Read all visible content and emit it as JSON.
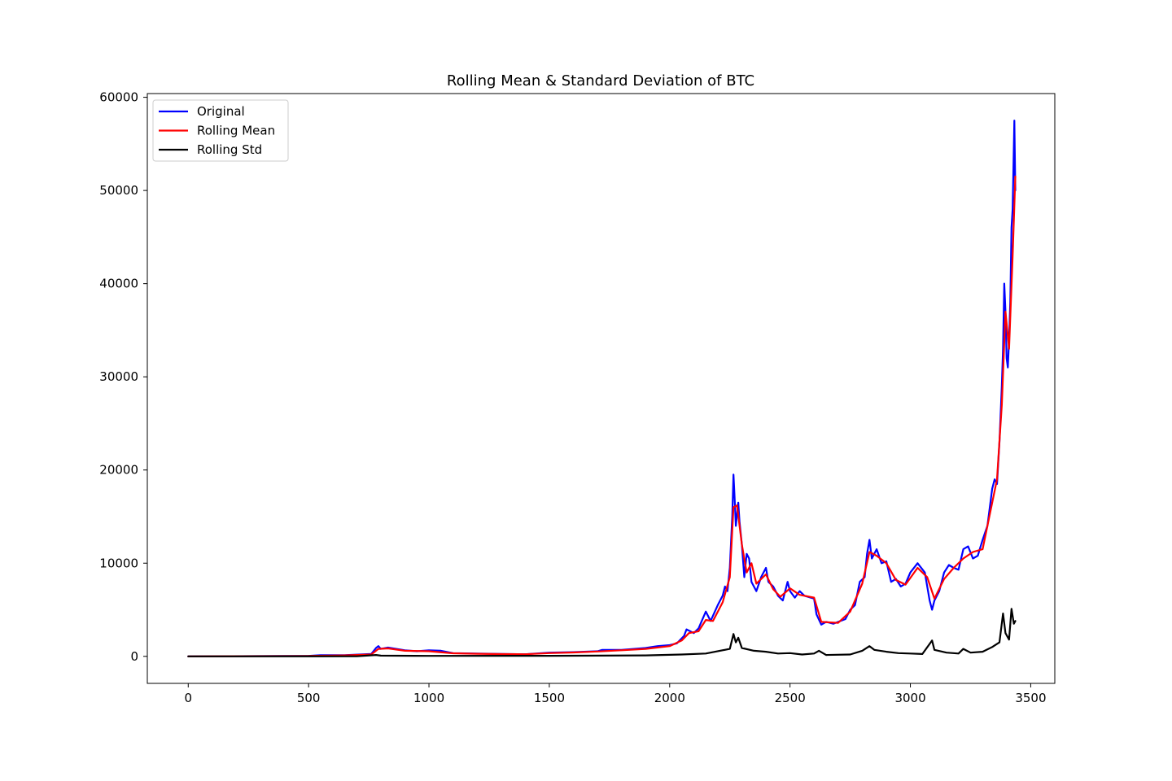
{
  "chart_data": {
    "type": "line",
    "title": "Rolling Mean & Standard Deviation of BTC",
    "xlabel": "",
    "ylabel": "",
    "xlim": [
      -170,
      3600
    ],
    "ylim": [
      -2900,
      60400
    ],
    "x_ticks": [
      0,
      500,
      1000,
      1500,
      2000,
      2500,
      3000,
      3500
    ],
    "y_ticks": [
      0,
      10000,
      20000,
      30000,
      40000,
      50000,
      60000
    ],
    "grid": false,
    "legend_position": "top-left",
    "series": [
      {
        "name": "Original",
        "color": "#0000ff",
        "points": [
          [
            0,
            0
          ],
          [
            500,
            50
          ],
          [
            550,
            120
          ],
          [
            650,
            130
          ],
          [
            760,
            250
          ],
          [
            780,
            900
          ],
          [
            790,
            1100
          ],
          [
            800,
            800
          ],
          [
            830,
            950
          ],
          [
            900,
            650
          ],
          [
            950,
            550
          ],
          [
            1000,
            650
          ],
          [
            1050,
            600
          ],
          [
            1100,
            350
          ],
          [
            1200,
            300
          ],
          [
            1300,
            250
          ],
          [
            1400,
            230
          ],
          [
            1500,
            400
          ],
          [
            1600,
            450
          ],
          [
            1700,
            550
          ],
          [
            1720,
            700
          ],
          [
            1800,
            700
          ],
          [
            1900,
            900
          ],
          [
            1950,
            1100
          ],
          [
            2000,
            1200
          ],
          [
            2030,
            1400
          ],
          [
            2060,
            2200
          ],
          [
            2070,
            2900
          ],
          [
            2100,
            2500
          ],
          [
            2120,
            3000
          ],
          [
            2140,
            4200
          ],
          [
            2150,
            4800
          ],
          [
            2170,
            3800
          ],
          [
            2200,
            5500
          ],
          [
            2220,
            6500
          ],
          [
            2230,
            7500
          ],
          [
            2240,
            7000
          ],
          [
            2250,
            9500
          ],
          [
            2260,
            15000
          ],
          [
            2265,
            19500
          ],
          [
            2270,
            17000
          ],
          [
            2275,
            14000
          ],
          [
            2285,
            16500
          ],
          [
            2290,
            14500
          ],
          [
            2300,
            12000
          ],
          [
            2310,
            8500
          ],
          [
            2320,
            11000
          ],
          [
            2330,
            10500
          ],
          [
            2340,
            8000
          ],
          [
            2360,
            7000
          ],
          [
            2380,
            8500
          ],
          [
            2400,
            9500
          ],
          [
            2410,
            8000
          ],
          [
            2430,
            7500
          ],
          [
            2450,
            6500
          ],
          [
            2470,
            6000
          ],
          [
            2490,
            8000
          ],
          [
            2500,
            7000
          ],
          [
            2520,
            6300
          ],
          [
            2540,
            7000
          ],
          [
            2560,
            6500
          ],
          [
            2600,
            6200
          ],
          [
            2610,
            4500
          ],
          [
            2630,
            3400
          ],
          [
            2650,
            3700
          ],
          [
            2680,
            3500
          ],
          [
            2700,
            3700
          ],
          [
            2730,
            4000
          ],
          [
            2750,
            5000
          ],
          [
            2770,
            5500
          ],
          [
            2790,
            8000
          ],
          [
            2810,
            8500
          ],
          [
            2820,
            11000
          ],
          [
            2830,
            12500
          ],
          [
            2840,
            10500
          ],
          [
            2860,
            11500
          ],
          [
            2880,
            10000
          ],
          [
            2900,
            10200
          ],
          [
            2920,
            8000
          ],
          [
            2940,
            8300
          ],
          [
            2960,
            7500
          ],
          [
            2980,
            7800
          ],
          [
            3000,
            9000
          ],
          [
            3030,
            10000
          ],
          [
            3060,
            9000
          ],
          [
            3080,
            6000
          ],
          [
            3090,
            5000
          ],
          [
            3100,
            6000
          ],
          [
            3120,
            7000
          ],
          [
            3140,
            9000
          ],
          [
            3160,
            9800
          ],
          [
            3180,
            9500
          ],
          [
            3200,
            9300
          ],
          [
            3220,
            11500
          ],
          [
            3240,
            11800
          ],
          [
            3260,
            10500
          ],
          [
            3280,
            10800
          ],
          [
            3300,
            12500
          ],
          [
            3320,
            14000
          ],
          [
            3340,
            18000
          ],
          [
            3350,
            19000
          ],
          [
            3360,
            18500
          ],
          [
            3370,
            23000
          ],
          [
            3380,
            29000
          ],
          [
            3385,
            33000
          ],
          [
            3390,
            40000
          ],
          [
            3395,
            37000
          ],
          [
            3400,
            32000
          ],
          [
            3405,
            31000
          ],
          [
            3410,
            34000
          ],
          [
            3415,
            38000
          ],
          [
            3420,
            46000
          ],
          [
            3425,
            48000
          ],
          [
            3428,
            52000
          ],
          [
            3432,
            57500
          ],
          [
            3436,
            50000
          ]
        ]
      },
      {
        "name": "Rolling Mean",
        "color": "#ff0000",
        "points": [
          [
            0,
            0
          ],
          [
            500,
            40
          ],
          [
            650,
            100
          ],
          [
            760,
            200
          ],
          [
            790,
            800
          ],
          [
            830,
            850
          ],
          [
            900,
            600
          ],
          [
            1000,
            550
          ],
          [
            1100,
            330
          ],
          [
            1200,
            280
          ],
          [
            1300,
            240
          ],
          [
            1400,
            230
          ],
          [
            1500,
            350
          ],
          [
            1600,
            420
          ],
          [
            1700,
            520
          ],
          [
            1800,
            650
          ],
          [
            1900,
            800
          ],
          [
            2000,
            1100
          ],
          [
            2050,
            1700
          ],
          [
            2080,
            2500
          ],
          [
            2120,
            2700
          ],
          [
            2150,
            3900
          ],
          [
            2180,
            3800
          ],
          [
            2220,
            5800
          ],
          [
            2250,
            8500
          ],
          [
            2265,
            16000
          ],
          [
            2280,
            16200
          ],
          [
            2300,
            12000
          ],
          [
            2320,
            9000
          ],
          [
            2340,
            10000
          ],
          [
            2360,
            7800
          ],
          [
            2400,
            8800
          ],
          [
            2430,
            7200
          ],
          [
            2460,
            6400
          ],
          [
            2500,
            7300
          ],
          [
            2540,
            6600
          ],
          [
            2600,
            6300
          ],
          [
            2630,
            3700
          ],
          [
            2700,
            3600
          ],
          [
            2750,
            4800
          ],
          [
            2800,
            7800
          ],
          [
            2830,
            11200
          ],
          [
            2860,
            10800
          ],
          [
            2900,
            10000
          ],
          [
            2940,
            8200
          ],
          [
            2980,
            7700
          ],
          [
            3030,
            9500
          ],
          [
            3070,
            8500
          ],
          [
            3100,
            6200
          ],
          [
            3140,
            8300
          ],
          [
            3180,
            9500
          ],
          [
            3220,
            10500
          ],
          [
            3260,
            11200
          ],
          [
            3300,
            11500
          ],
          [
            3340,
            16500
          ],
          [
            3360,
            19000
          ],
          [
            3380,
            27000
          ],
          [
            3395,
            37000
          ],
          [
            3410,
            33000
          ],
          [
            3425,
            43000
          ],
          [
            3436,
            51500
          ]
        ]
      },
      {
        "name": "Rolling Std",
        "color": "#000000",
        "points": [
          [
            0,
            0
          ],
          [
            700,
            10
          ],
          [
            780,
            150
          ],
          [
            800,
            80
          ],
          [
            1000,
            50
          ],
          [
            1500,
            60
          ],
          [
            1700,
            80
          ],
          [
            1900,
            100
          ],
          [
            2050,
            200
          ],
          [
            2150,
            300
          ],
          [
            2250,
            800
          ],
          [
            2265,
            2400
          ],
          [
            2275,
            1500
          ],
          [
            2285,
            2000
          ],
          [
            2300,
            900
          ],
          [
            2350,
            600
          ],
          [
            2400,
            500
          ],
          [
            2450,
            300
          ],
          [
            2500,
            350
          ],
          [
            2550,
            200
          ],
          [
            2600,
            300
          ],
          [
            2620,
            600
          ],
          [
            2650,
            150
          ],
          [
            2750,
            200
          ],
          [
            2800,
            600
          ],
          [
            2830,
            1100
          ],
          [
            2850,
            700
          ],
          [
            2900,
            500
          ],
          [
            2950,
            350
          ],
          [
            3000,
            300
          ],
          [
            3050,
            250
          ],
          [
            3090,
            1700
          ],
          [
            3100,
            700
          ],
          [
            3150,
            400
          ],
          [
            3200,
            300
          ],
          [
            3220,
            800
          ],
          [
            3250,
            400
          ],
          [
            3300,
            500
          ],
          [
            3340,
            1000
          ],
          [
            3370,
            1500
          ],
          [
            3385,
            4600
          ],
          [
            3395,
            2500
          ],
          [
            3410,
            1800
          ],
          [
            3420,
            5100
          ],
          [
            3430,
            3500
          ],
          [
            3436,
            3800
          ]
        ]
      }
    ]
  }
}
